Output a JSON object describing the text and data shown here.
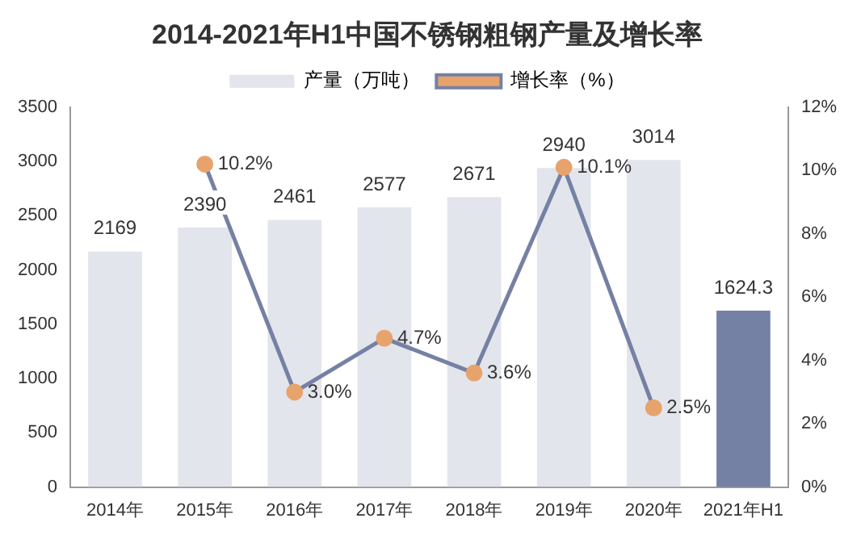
{
  "chart_data": {
    "type": "bar",
    "title": "2014-2021年H1中国不锈钢粗钢产量及增长率",
    "categories": [
      "2014年",
      "2015年",
      "2016年",
      "2017年",
      "2018年",
      "2019年",
      "2020年",
      "2021年H1"
    ],
    "series": [
      {
        "name": "产量（万吨）",
        "colors": [
          "#e3e5ec",
          "#e3e5ec",
          "#e3e5ec",
          "#e3e5ec",
          "#e3e5ec",
          "#e3e5ec",
          "#e3e5ec",
          "#7581a4"
        ],
        "values": [
          2169,
          2390,
          2461,
          2577,
          2671,
          2940,
          3014,
          1624.3
        ],
        "value_labels": [
          "2169",
          "2390",
          "2461",
          "2577",
          "2671",
          "2940",
          "3014",
          "1624.3"
        ]
      },
      {
        "name": "增长率（%）",
        "type": "line",
        "axis": "y2",
        "color": "#7581a4",
        "colors": [
          null,
          "#e8a36c",
          "#e8a36c",
          "#e8a36c",
          "#e8a36c",
          "#e8a36c",
          "#e8a36c",
          null
        ],
        "values": [
          null,
          10.2,
          3.0,
          4.7,
          3.6,
          10.1,
          2.5,
          null
        ],
        "value_labels": [
          null,
          "10.2%",
          "3.0%",
          "4.7%",
          "3.6%",
          "10.1%",
          "2.5%",
          null
        ]
      }
    ],
    "ylim": [
      0,
      3500
    ],
    "yticks": [
      0,
      500,
      1000,
      1500,
      2000,
      2500,
      3000,
      3500
    ],
    "y2lim": [
      0,
      12
    ],
    "y2ticks": [
      {
        "value": 0,
        "label": "0%"
      },
      {
        "value": 2,
        "label": "2%"
      },
      {
        "value": 4,
        "label": "4%"
      },
      {
        "value": 6,
        "label": "6%"
      },
      {
        "value": 8,
        "label": "8%"
      },
      {
        "value": 10,
        "label": "10%"
      },
      {
        "value": 12,
        "label": "12%"
      }
    ],
    "grid": false,
    "legend": "top",
    "marker": "circle",
    "line_style": "solid"
  }
}
